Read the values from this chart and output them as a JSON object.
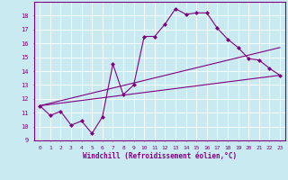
{
  "xlabel": "Windchill (Refroidissement éolien,°C)",
  "background_color": "#c8eaf0",
  "grid_color": "#b0d4dc",
  "line_color": "#800080",
  "xlim": [
    -0.5,
    23.5
  ],
  "ylim": [
    9,
    19
  ],
  "yticks": [
    9,
    10,
    11,
    12,
    13,
    14,
    15,
    16,
    17,
    18
  ],
  "xticks": [
    0,
    1,
    2,
    3,
    4,
    5,
    6,
    7,
    8,
    9,
    10,
    11,
    12,
    13,
    14,
    15,
    16,
    17,
    18,
    19,
    20,
    21,
    22,
    23
  ],
  "series1_x": [
    0,
    1,
    2,
    3,
    4,
    5,
    6,
    7,
    8,
    9,
    10,
    11,
    12,
    13,
    14,
    15,
    16,
    17,
    18,
    19,
    20,
    21,
    22,
    23
  ],
  "series1_y": [
    11.5,
    10.8,
    11.1,
    10.1,
    10.4,
    9.5,
    10.7,
    14.5,
    12.3,
    13.0,
    16.5,
    16.5,
    17.4,
    18.5,
    18.1,
    18.2,
    18.2,
    17.1,
    16.3,
    15.7,
    14.9,
    14.8,
    14.2,
    13.7
  ],
  "series2_x": [
    0,
    23
  ],
  "series2_y": [
    11.5,
    13.7
  ],
  "series3_x": [
    0,
    23
  ],
  "series3_y": [
    11.5,
    15.7
  ]
}
